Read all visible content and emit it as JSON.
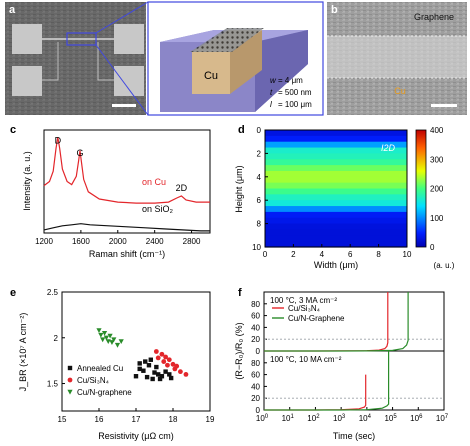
{
  "panel_labels": {
    "a": "a",
    "b": "b",
    "c": "c",
    "d": "d",
    "e": "e",
    "f": "f"
  },
  "panel_a": {
    "material": "Cu",
    "params": [
      {
        "symbol": "w",
        "value": "= 4 μm"
      },
      {
        "symbol": "t",
        "value": "= 500 nm"
      },
      {
        "symbol": "l",
        "value": "= 100 μm"
      }
    ]
  },
  "panel_b": {
    "top_label": "Graphene",
    "bottom_label": "Cu"
  },
  "colors": {
    "red": "#e3262b",
    "green": "#2a8c2a",
    "black": "#111111",
    "grey": "#9aa0a6",
    "blue_box": "#5a5fcf"
  },
  "chart_data": [
    {
      "type": "line",
      "panel": "c",
      "xlabel": "Raman shift (cm⁻¹)",
      "ylabel": "Intensity (a. u.)",
      "xlim": [
        1200,
        3000
      ],
      "xticks": [
        1200,
        1600,
        2000,
        2400,
        2800
      ],
      "peak_labels": [
        {
          "text": "D",
          "x": 1350
        },
        {
          "text": "G",
          "x": 1590
        },
        {
          "text": "2D",
          "x": 2690
        }
      ],
      "series": [
        {
          "name": "on Cu",
          "color": "#e3262b",
          "x": [
            1200,
            1260,
            1300,
            1330,
            1350,
            1370,
            1400,
            1450,
            1500,
            1550,
            1575,
            1590,
            1605,
            1630,
            1680,
            1800,
            2000,
            2200,
            2400,
            2550,
            2640,
            2690,
            2740,
            2850,
            3000
          ],
          "y": [
            0.46,
            0.5,
            0.6,
            0.82,
            0.93,
            0.82,
            0.62,
            0.5,
            0.47,
            0.55,
            0.7,
            0.8,
            0.7,
            0.52,
            0.4,
            0.33,
            0.3,
            0.29,
            0.29,
            0.3,
            0.34,
            0.36,
            0.32,
            0.3,
            0.3
          ]
        },
        {
          "name": "on SiO₂",
          "color": "#111111",
          "x": [
            1200,
            1300,
            1400,
            1500,
            1600,
            1700,
            1900,
            2100,
            2300,
            2500,
            2700,
            2900,
            3000
          ],
          "y": [
            0.03,
            0.05,
            0.07,
            0.08,
            0.09,
            0.08,
            0.07,
            0.06,
            0.05,
            0.04,
            0.03,
            0.02,
            0.02
          ]
        }
      ]
    },
    {
      "type": "heatmap",
      "panel": "d",
      "title": "I2D",
      "xlabel": "Width (μm)",
      "ylabel": "Height (μm)",
      "xlim": [
        0,
        10
      ],
      "ylim": [
        10,
        0
      ],
      "xticks": [
        0,
        2,
        4,
        6,
        8,
        10
      ],
      "yticks": [
        0,
        2,
        4,
        6,
        8,
        10
      ],
      "colorbar": {
        "min": 0,
        "max": 400,
        "ticks": [
          0,
          100,
          200,
          300,
          400
        ],
        "unit": "(a. u.)"
      },
      "rows_height": [
        0.0,
        0.5,
        1.0,
        1.5,
        2.0,
        2.5,
        3.0,
        3.5,
        4.0,
        4.5,
        5.0,
        5.5,
        6.0,
        6.5,
        7.0,
        7.5,
        8.0,
        8.5,
        9.0,
        9.5,
        10.0
      ],
      "row_values": [
        30,
        30,
        60,
        160,
        170,
        175,
        200,
        230,
        240,
        230,
        210,
        180,
        160,
        155,
        45,
        40,
        30,
        25,
        25,
        25,
        25
      ]
    },
    {
      "type": "scatter",
      "panel": "e",
      "xlabel": "Resistivity (μΩ cm)",
      "ylabel": "J_BR (×10⁷ A cm⁻²)",
      "xlim": [
        15,
        19
      ],
      "ylim": [
        1.2,
        2.5
      ],
      "xticks": [
        15,
        16,
        17,
        18,
        19
      ],
      "yticks": [
        1.5,
        2.0,
        2.5
      ],
      "series": [
        {
          "name": "Annealed Cu",
          "marker": "square",
          "color": "#111111",
          "x": [
            17.0,
            17.1,
            17.2,
            17.25,
            17.3,
            17.35,
            17.45,
            17.5,
            17.55,
            17.6,
            17.65,
            17.7,
            17.8,
            17.9,
            17.95,
            17.1,
            17.4
          ],
          "y": [
            1.58,
            1.72,
            1.64,
            1.74,
            1.57,
            1.7,
            1.55,
            1.62,
            1.68,
            1.6,
            1.55,
            1.58,
            1.63,
            1.6,
            1.56,
            1.66,
            1.76
          ]
        },
        {
          "name": "Cu/Si₃N₄",
          "marker": "circle",
          "color": "#e3262b",
          "x": [
            17.55,
            17.6,
            17.7,
            17.75,
            17.8,
            17.85,
            17.9,
            18.0,
            18.05,
            18.1,
            18.2,
            18.35
          ],
          "y": [
            1.85,
            1.78,
            1.82,
            1.74,
            1.79,
            1.7,
            1.76,
            1.71,
            1.66,
            1.69,
            1.63,
            1.6
          ]
        },
        {
          "name": "Cu/N-graphene",
          "marker": "triangle",
          "color": "#2a8c2a",
          "x": [
            16.0,
            16.05,
            16.1,
            16.15,
            16.2,
            16.25,
            16.3,
            16.35,
            16.4,
            16.5,
            16.6
          ],
          "y": [
            2.08,
            2.03,
            1.98,
            2.05,
            2.0,
            1.96,
            2.02,
            1.95,
            1.98,
            1.92,
            1.96
          ]
        }
      ]
    },
    {
      "type": "line",
      "panel": "f",
      "xlabel": "Time (sec)",
      "ylabel": "(R−R₀)/R₀ (%)",
      "xscale": "log",
      "xlim": [
        1,
        10000000
      ],
      "xtick_exponents": [
        0,
        1,
        2,
        3,
        4,
        5,
        6,
        7
      ],
      "subplots": [
        {
          "condition": "100 °C, 3 MA cm⁻²",
          "ylim": [
            0,
            100
          ],
          "yticks": [
            0,
            20,
            40,
            60,
            80
          ],
          "threshold": 20,
          "series": [
            {
              "name": "Cu/Si₃N₄",
              "color": "#e3262b",
              "x": [
                1,
                10,
                100,
                1000,
                10000,
                30000,
                50000,
                60000,
                65000,
                65000
              ],
              "y": [
                0,
                0,
                0,
                0.2,
                0.5,
                1.5,
                4,
                8,
                14,
                100
              ]
            },
            {
              "name": "Cu/N-Graphene",
              "color": "#2a8c2a",
              "x": [
                1,
                10,
                100,
                1000,
                10000,
                100000,
                250000,
                350000,
                400000,
                400000
              ],
              "y": [
                0,
                0,
                0,
                0,
                0.2,
                1,
                4,
                10,
                18,
                100
              ]
            }
          ]
        },
        {
          "condition": "100 °C, 10 MA cm⁻²",
          "ylim": [
            0,
            100
          ],
          "yticks": [
            0,
            20,
            40,
            60,
            80
          ],
          "threshold": 20,
          "series": [
            {
              "name": "Cu/Si₃N₄",
              "color": "#e3262b",
              "x": [
                1,
                10,
                100,
                1000,
                5000,
                8000,
                9000,
                9000
              ],
              "y": [
                0,
                0,
                0,
                0.5,
                2,
                5,
                8,
                60
              ]
            },
            {
              "name": "Cu/N-Graphene",
              "color": "#2a8c2a",
              "x": [
                1,
                10,
                100,
                1000,
                10000,
                40000,
                60000,
                70000,
                70000
              ],
              "y": [
                0,
                0,
                0,
                0,
                0.5,
                3,
                7,
                10,
                100
              ]
            }
          ]
        }
      ]
    }
  ]
}
